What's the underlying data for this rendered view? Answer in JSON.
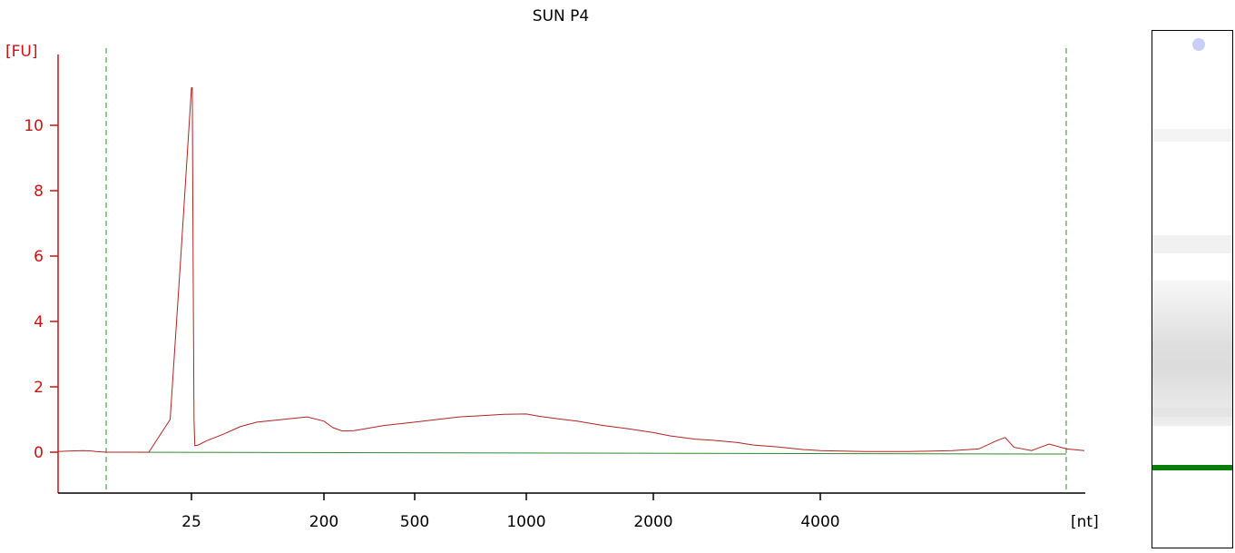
{
  "chart_data": {
    "type": "line",
    "title": "SUN P4",
    "ylabel": "[FU]",
    "xlabel": "[nt]",
    "ylim": [
      -1.2,
      12.2
    ],
    "y_ticks": [
      "0",
      "2",
      "4",
      "6",
      "8",
      "10"
    ],
    "x_ticks": [
      "25",
      "200",
      "500",
      "1000",
      "2000",
      "4000"
    ],
    "x_axis_scale": "electrophoresis migration (nonlinear size scale)",
    "grid": false,
    "colors": {
      "axis_y": "#cc1111",
      "trace": "#b22222",
      "baseline": "#2e8b2e",
      "markers": "#2e8b2e",
      "lane_marker": "#0a7d0a"
    },
    "series": [
      {
        "values_xy": [
          [
            15,
            0.02
          ],
          [
            20,
            0.04
          ],
          [
            25,
            0.05
          ],
          [
            28,
            0.04
          ],
          [
            30,
            0.02
          ],
          [
            34,
            0.0
          ],
          [
            38,
            0.0
          ],
          [
            40,
            1.0
          ],
          [
            41,
            6.0
          ],
          [
            42,
            11.15
          ],
          [
            43,
            11.15
          ],
          [
            44,
            6.0
          ],
          [
            45,
            1.0
          ],
          [
            46,
            0.2
          ],
          [
            50,
            0.22
          ],
          [
            60,
            0.35
          ],
          [
            80,
            0.55
          ],
          [
            100,
            0.78
          ],
          [
            120,
            0.92
          ],
          [
            150,
            1.0
          ],
          [
            180,
            1.08
          ],
          [
            200,
            0.95
          ],
          [
            230,
            0.75
          ],
          [
            260,
            0.65
          ],
          [
            300,
            0.66
          ],
          [
            400,
            0.82
          ],
          [
            500,
            0.92
          ],
          [
            600,
            1.0
          ],
          [
            700,
            1.08
          ],
          [
            800,
            1.12
          ],
          [
            900,
            1.16
          ],
          [
            1000,
            1.17
          ],
          [
            1100,
            1.1
          ],
          [
            1250,
            1.02
          ],
          [
            1400,
            0.95
          ],
          [
            1600,
            0.82
          ],
          [
            1800,
            0.72
          ],
          [
            2000,
            0.6
          ],
          [
            2200,
            0.5
          ],
          [
            2500,
            0.4
          ],
          [
            2700,
            0.37
          ],
          [
            3000,
            0.3
          ],
          [
            3200,
            0.22
          ],
          [
            3500,
            0.16
          ],
          [
            3800,
            0.08
          ],
          [
            4000,
            0.05
          ],
          [
            4500,
            0.02
          ],
          [
            5000,
            0.02
          ],
          [
            5500,
            0.05
          ],
          [
            5800,
            0.1
          ],
          [
            6000,
            0.35
          ],
          [
            6100,
            0.45
          ],
          [
            6200,
            0.15
          ],
          [
            6400,
            0.05
          ],
          [
            6600,
            0.25
          ],
          [
            6800,
            0.1
          ],
          [
            7000,
            0.05
          ]
        ]
      }
    ]
  }
}
